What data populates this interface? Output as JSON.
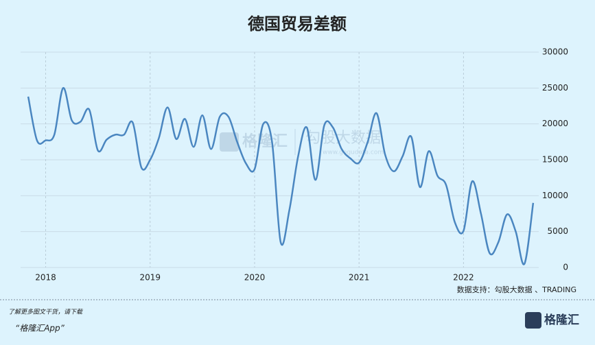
{
  "chart_data": {
    "type": "line",
    "title": "德国贸易差额",
    "x": [
      2017.833,
      2017.917,
      2018,
      2018.083,
      2018.167,
      2018.25,
      2018.333,
      2018.417,
      2018.5,
      2018.583,
      2018.667,
      2018.75,
      2018.833,
      2018.917,
      2019,
      2019.083,
      2019.167,
      2019.25,
      2019.333,
      2019.417,
      2019.5,
      2019.583,
      2019.667,
      2019.75,
      2019.833,
      2019.917,
      2020,
      2020.083,
      2020.167,
      2020.25,
      2020.333,
      2020.417,
      2020.5,
      2020.583,
      2020.667,
      2020.75,
      2020.833,
      2020.917,
      2021,
      2021.083,
      2021.167,
      2021.25,
      2021.333,
      2021.417,
      2021.5,
      2021.583,
      2021.667,
      2021.75,
      2021.833,
      2021.917,
      2022,
      2022.083,
      2022.167,
      2022.25,
      2022.333,
      2022.417,
      2022.5,
      2022.583,
      2022.667
    ],
    "series": [
      {
        "color": "#4a86c0",
        "values": [
          23800,
          17700,
          17700,
          18500,
          25000,
          20500,
          20300,
          22000,
          16300,
          17800,
          18500,
          18500,
          20200,
          13900,
          15000,
          18000,
          22300,
          17900,
          20700,
          16800,
          21200,
          16500,
          21000,
          21000,
          17500,
          14500,
          13700,
          20000,
          17500,
          3500,
          8000,
          15500,
          19500,
          12200,
          19800,
          19500,
          16500,
          15200,
          14600,
          17500,
          21500,
          15700,
          13400,
          15500,
          18200,
          11200,
          16200,
          12800,
          11500,
          6300,
          5100,
          12000,
          7500,
          2000,
          3500,
          7400,
          5000,
          500,
          9000
        ]
      }
    ],
    "xlim": [
      2017.76,
      2022.72
    ],
    "xticks": [
      2018,
      2019,
      2020,
      2021,
      2022
    ],
    "ylim": [
      0,
      30000
    ],
    "yticks": [
      0,
      5000,
      10000,
      15000,
      20000,
      25000,
      30000
    ],
    "grid": true,
    "source": "数据支持：勾股大数据 、TRADING",
    "watermark": [
      "格隆汇",
      "勾股大数据",
      "www.gogudata.com"
    ],
    "footer": [
      "了解更多图文干货，请下载",
      "“格隆汇App”"
    ],
    "logo": "格隆汇"
  }
}
